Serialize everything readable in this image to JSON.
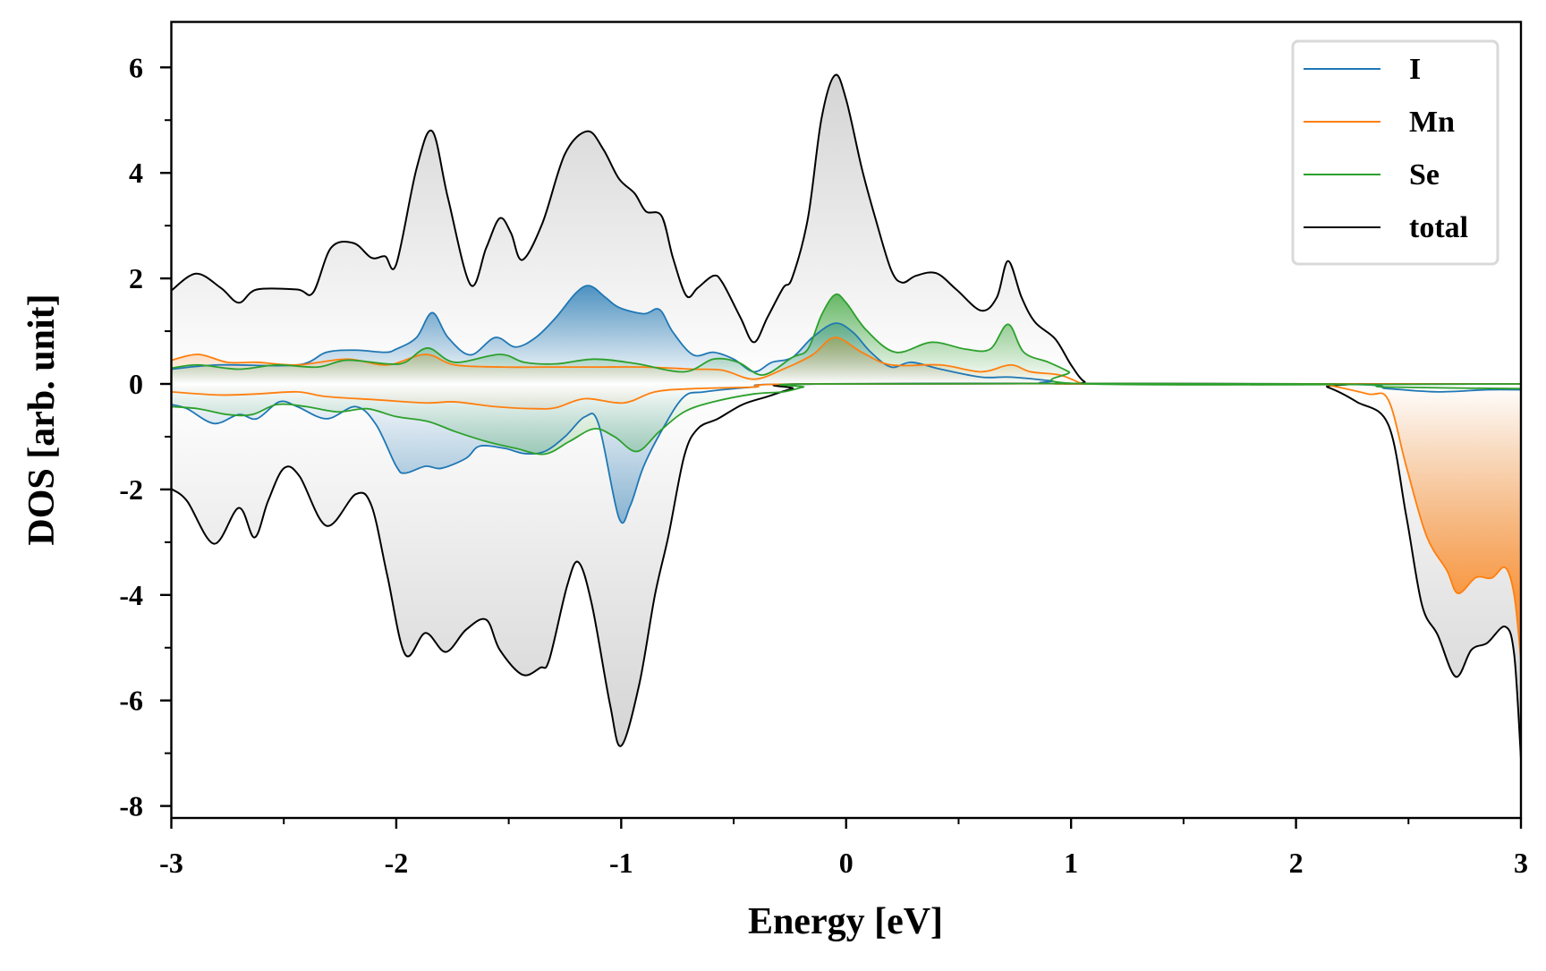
{
  "chart_data": {
    "type": "line",
    "title": "",
    "xlabel": "Energy [eV]",
    "ylabel": "DOS [arb. unit]",
    "xlim": [
      -3,
      3
    ],
    "ylim": [
      -8.2,
      6.8
    ],
    "xticks": [
      -3,
      -2,
      -1,
      0,
      1,
      2,
      3
    ],
    "xtick_labels": [
      "-3",
      "-2",
      "-1",
      "0",
      "1",
      "2",
      "3"
    ],
    "yticks": [
      6,
      4,
      2,
      0,
      -2,
      -4,
      -6,
      -8
    ],
    "ytick_labels": [
      "6",
      "4",
      "2",
      "0",
      "-2",
      "-4",
      "-6",
      "-8"
    ],
    "grid": false,
    "legend_position": "top-right",
    "series": [
      {
        "name": "I",
        "color": "#1f77b4",
        "up": [
          [
            -3,
            0.28
          ],
          [
            -2.79,
            0.36
          ],
          [
            -2.44,
            0.36
          ],
          [
            -2.31,
            0.6
          ],
          [
            -2.18,
            0.64
          ],
          [
            -2.05,
            0.6
          ],
          [
            -2.0,
            0.66
          ],
          [
            -1.91,
            0.88
          ],
          [
            -1.84,
            1.35
          ],
          [
            -1.77,
            0.88
          ],
          [
            -1.67,
            0.55
          ],
          [
            -1.56,
            0.88
          ],
          [
            -1.47,
            0.7
          ],
          [
            -1.38,
            0.88
          ],
          [
            -1.29,
            1.26
          ],
          [
            -1.2,
            1.73
          ],
          [
            -1.14,
            1.86
          ],
          [
            -1.07,
            1.64
          ],
          [
            -1.01,
            1.45
          ],
          [
            -0.9,
            1.33
          ],
          [
            -0.83,
            1.41
          ],
          [
            -0.77,
            0.98
          ],
          [
            -0.68,
            0.55
          ],
          [
            -0.59,
            0.6
          ],
          [
            -0.5,
            0.47
          ],
          [
            -0.41,
            0.23
          ],
          [
            -0.33,
            0.41
          ],
          [
            -0.24,
            0.5
          ],
          [
            -0.15,
            0.88
          ],
          [
            -0.05,
            1.15
          ],
          [
            0.03,
            0.98
          ],
          [
            0.11,
            0.6
          ],
          [
            0.2,
            0.32
          ],
          [
            0.29,
            0.41
          ],
          [
            0.42,
            0.28
          ],
          [
            0.6,
            0.13
          ],
          [
            0.73,
            0.13
          ],
          [
            0.91,
            0.06
          ],
          [
            1.04,
            0
          ],
          [
            3,
            0
          ]
        ],
        "down": [
          [
            -3,
            -0.39
          ],
          [
            -2.93,
            -0.47
          ],
          [
            -2.81,
            -0.75
          ],
          [
            -2.7,
            -0.58
          ],
          [
            -2.62,
            -0.66
          ],
          [
            -2.52,
            -0.34
          ],
          [
            -2.44,
            -0.43
          ],
          [
            -2.31,
            -0.66
          ],
          [
            -2.18,
            -0.43
          ],
          [
            -2.09,
            -0.77
          ],
          [
            -2.0,
            -1.56
          ],
          [
            -1.96,
            -1.69
          ],
          [
            -1.87,
            -1.56
          ],
          [
            -1.8,
            -1.6
          ],
          [
            -1.69,
            -1.41
          ],
          [
            -1.63,
            -1.18
          ],
          [
            -1.52,
            -1.22
          ],
          [
            -1.43,
            -1.32
          ],
          [
            -1.34,
            -1.28
          ],
          [
            -1.25,
            -1.0
          ],
          [
            -1.16,
            -0.62
          ],
          [
            -1.1,
            -0.77
          ],
          [
            -1.01,
            -2.54
          ],
          [
            -0.96,
            -2.31
          ],
          [
            -0.9,
            -1.56
          ],
          [
            -0.81,
            -0.81
          ],
          [
            -0.72,
            -0.24
          ],
          [
            -0.63,
            -0.15
          ],
          [
            -0.41,
            -0.06
          ],
          [
            -0.15,
            0
          ],
          [
            2.1,
            0
          ],
          [
            2.41,
            -0.09
          ],
          [
            2.63,
            -0.15
          ],
          [
            2.85,
            -0.11
          ],
          [
            3,
            -0.11
          ]
        ]
      },
      {
        "name": "Mn",
        "color": "#ff7f0e",
        "up": [
          [
            -3,
            0.45
          ],
          [
            -2.88,
            0.56
          ],
          [
            -2.75,
            0.41
          ],
          [
            -2.62,
            0.41
          ],
          [
            -2.44,
            0.36
          ],
          [
            -2.22,
            0.47
          ],
          [
            -2.04,
            0.36
          ],
          [
            -1.87,
            0.56
          ],
          [
            -1.74,
            0.36
          ],
          [
            -1.52,
            0.32
          ],
          [
            -1.34,
            0.32
          ],
          [
            -1.12,
            0.32
          ],
          [
            -0.9,
            0.32
          ],
          [
            -0.68,
            0.28
          ],
          [
            -0.55,
            0.26
          ],
          [
            -0.41,
            0.09
          ],
          [
            -0.28,
            0.28
          ],
          [
            -0.15,
            0.55
          ],
          [
            -0.05,
            0.88
          ],
          [
            0.07,
            0.6
          ],
          [
            0.2,
            0.36
          ],
          [
            0.42,
            0.36
          ],
          [
            0.6,
            0.23
          ],
          [
            0.73,
            0.36
          ],
          [
            0.82,
            0.23
          ],
          [
            0.95,
            0.17
          ],
          [
            1.04,
            0.02
          ],
          [
            1.08,
            0
          ],
          [
            3,
            0
          ]
        ],
        "down": [
          [
            -3,
            -0.15
          ],
          [
            -2.79,
            -0.21
          ],
          [
            -2.62,
            -0.19
          ],
          [
            -2.44,
            -0.15
          ],
          [
            -2.31,
            -0.24
          ],
          [
            -2.09,
            -0.3
          ],
          [
            -1.87,
            -0.36
          ],
          [
            -1.74,
            -0.34
          ],
          [
            -1.56,
            -0.43
          ],
          [
            -1.38,
            -0.47
          ],
          [
            -1.29,
            -0.45
          ],
          [
            -1.16,
            -0.28
          ],
          [
            -0.99,
            -0.36
          ],
          [
            -0.85,
            -0.15
          ],
          [
            -0.68,
            -0.09
          ],
          [
            -0.41,
            -0.06
          ],
          [
            -0.15,
            0
          ],
          [
            2.1,
            0
          ],
          [
            2.14,
            -0.02
          ],
          [
            2.32,
            -0.19
          ],
          [
            2.41,
            -0.3
          ],
          [
            2.49,
            -1.56
          ],
          [
            2.58,
            -2.88
          ],
          [
            2.67,
            -3.53
          ],
          [
            2.72,
            -3.97
          ],
          [
            2.8,
            -3.67
          ],
          [
            2.87,
            -3.68
          ],
          [
            2.93,
            -3.48
          ],
          [
            2.97,
            -4.0
          ],
          [
            3,
            -5.23
          ]
        ]
      },
      {
        "name": "Se",
        "color": "#2ca02c",
        "up": [
          [
            -3,
            0.3
          ],
          [
            -2.88,
            0.36
          ],
          [
            -2.7,
            0.28
          ],
          [
            -2.53,
            0.36
          ],
          [
            -2.35,
            0.32
          ],
          [
            -2.22,
            0.45
          ],
          [
            -2.04,
            0.38
          ],
          [
            -1.96,
            0.41
          ],
          [
            -1.86,
            0.68
          ],
          [
            -1.74,
            0.41
          ],
          [
            -1.54,
            0.56
          ],
          [
            -1.43,
            0.41
          ],
          [
            -1.29,
            0.38
          ],
          [
            -1.12,
            0.47
          ],
          [
            -0.94,
            0.39
          ],
          [
            -0.72,
            0.23
          ],
          [
            -0.59,
            0.47
          ],
          [
            -0.48,
            0.41
          ],
          [
            -0.37,
            0.17
          ],
          [
            -0.24,
            0.5
          ],
          [
            -0.17,
            0.66
          ],
          [
            -0.11,
            1.3
          ],
          [
            -0.05,
            1.69
          ],
          [
            0.0,
            1.54
          ],
          [
            0.09,
            1.02
          ],
          [
            0.22,
            0.6
          ],
          [
            0.38,
            0.79
          ],
          [
            0.53,
            0.66
          ],
          [
            0.64,
            0.66
          ],
          [
            0.72,
            1.13
          ],
          [
            0.79,
            0.6
          ],
          [
            0.9,
            0.41
          ],
          [
            0.99,
            0.23
          ],
          [
            1.08,
            0
          ],
          [
            3,
            0
          ]
        ],
        "down": [
          [
            -3,
            -0.43
          ],
          [
            -2.88,
            -0.47
          ],
          [
            -2.75,
            -0.58
          ],
          [
            -2.64,
            -0.58
          ],
          [
            -2.53,
            -0.39
          ],
          [
            -2.4,
            -0.43
          ],
          [
            -2.26,
            -0.53
          ],
          [
            -2.13,
            -0.47
          ],
          [
            -2.0,
            -0.62
          ],
          [
            -1.86,
            -0.71
          ],
          [
            -1.74,
            -0.9
          ],
          [
            -1.6,
            -1.09
          ],
          [
            -1.47,
            -1.22
          ],
          [
            -1.34,
            -1.33
          ],
          [
            -1.23,
            -1.09
          ],
          [
            -1.12,
            -0.85
          ],
          [
            -1.03,
            -1.0
          ],
          [
            -0.93,
            -1.28
          ],
          [
            -0.83,
            -0.9
          ],
          [
            -0.72,
            -0.53
          ],
          [
            -0.59,
            -0.34
          ],
          [
            -0.41,
            -0.19
          ],
          [
            -0.28,
            -0.15
          ],
          [
            -0.19,
            -0.06
          ],
          [
            -0.11,
            0
          ],
          [
            2.1,
            0
          ],
          [
            2.41,
            -0.06
          ],
          [
            3,
            -0.09
          ]
        ]
      },
      {
        "name": "total",
        "color": "#000000",
        "up": [
          [
            -3,
            1.77
          ],
          [
            -2.89,
            2.09
          ],
          [
            -2.78,
            1.82
          ],
          [
            -2.7,
            1.54
          ],
          [
            -2.62,
            1.79
          ],
          [
            -2.44,
            1.79
          ],
          [
            -2.37,
            1.73
          ],
          [
            -2.29,
            2.58
          ],
          [
            -2.19,
            2.67
          ],
          [
            -2.11,
            2.39
          ],
          [
            -2.05,
            2.42
          ],
          [
            -2.0,
            2.27
          ],
          [
            -1.91,
            4.08
          ],
          [
            -1.84,
            4.79
          ],
          [
            -1.77,
            3.52
          ],
          [
            -1.67,
            1.88
          ],
          [
            -1.6,
            2.58
          ],
          [
            -1.54,
            3.14
          ],
          [
            -1.49,
            2.86
          ],
          [
            -1.44,
            2.35
          ],
          [
            -1.35,
            3.05
          ],
          [
            -1.25,
            4.36
          ],
          [
            -1.15,
            4.79
          ],
          [
            -1.08,
            4.45
          ],
          [
            -1.01,
            3.89
          ],
          [
            -0.94,
            3.61
          ],
          [
            -0.89,
            3.27
          ],
          [
            -0.82,
            3.18
          ],
          [
            -0.77,
            2.39
          ],
          [
            -0.71,
            1.67
          ],
          [
            -0.66,
            1.82
          ],
          [
            -0.59,
            2.05
          ],
          [
            -0.55,
            1.92
          ],
          [
            -0.47,
            1.26
          ],
          [
            -0.41,
            0.79
          ],
          [
            -0.35,
            1.26
          ],
          [
            -0.28,
            1.82
          ],
          [
            -0.24,
            2.01
          ],
          [
            -0.17,
            3.14
          ],
          [
            -0.11,
            5.02
          ],
          [
            -0.05,
            5.85
          ],
          [
            0.0,
            5.39
          ],
          [
            0.07,
            4.08
          ],
          [
            0.13,
            3.14
          ],
          [
            0.2,
            2.16
          ],
          [
            0.25,
            1.92
          ],
          [
            0.31,
            2.05
          ],
          [
            0.4,
            2.1
          ],
          [
            0.49,
            1.79
          ],
          [
            0.6,
            1.39
          ],
          [
            0.67,
            1.64
          ],
          [
            0.72,
            2.33
          ],
          [
            0.78,
            1.64
          ],
          [
            0.84,
            1.17
          ],
          [
            0.93,
            0.85
          ],
          [
            1.0,
            0.36
          ],
          [
            1.06,
            0.04
          ],
          [
            1.13,
            0
          ],
          [
            3,
            0
          ]
        ],
        "down": [
          [
            -3,
            -1.99
          ],
          [
            -2.93,
            -2.22
          ],
          [
            -2.81,
            -3.03
          ],
          [
            -2.7,
            -2.35
          ],
          [
            -2.63,
            -2.91
          ],
          [
            -2.57,
            -2.22
          ],
          [
            -2.5,
            -1.6
          ],
          [
            -2.43,
            -1.75
          ],
          [
            -2.31,
            -2.69
          ],
          [
            -2.18,
            -2.09
          ],
          [
            -2.11,
            -2.31
          ],
          [
            -2.04,
            -3.63
          ],
          [
            -1.96,
            -5.13
          ],
          [
            -1.87,
            -4.72
          ],
          [
            -1.78,
            -5.08
          ],
          [
            -1.69,
            -4.66
          ],
          [
            -1.6,
            -4.47
          ],
          [
            -1.54,
            -5.04
          ],
          [
            -1.44,
            -5.51
          ],
          [
            -1.36,
            -5.38
          ],
          [
            -1.32,
            -5.23
          ],
          [
            -1.24,
            -3.82
          ],
          [
            -1.19,
            -3.38
          ],
          [
            -1.13,
            -4.19
          ],
          [
            -1.05,
            -6.07
          ],
          [
            -1.0,
            -6.86
          ],
          [
            -0.92,
            -5.7
          ],
          [
            -0.85,
            -4.0
          ],
          [
            -0.79,
            -2.88
          ],
          [
            -0.72,
            -1.37
          ],
          [
            -0.66,
            -0.85
          ],
          [
            -0.57,
            -0.66
          ],
          [
            -0.46,
            -0.39
          ],
          [
            -0.35,
            -0.24
          ],
          [
            -0.24,
            -0.09
          ],
          [
            -0.13,
            0
          ],
          [
            2.05,
            0
          ],
          [
            2.14,
            -0.06
          ],
          [
            2.27,
            -0.34
          ],
          [
            2.41,
            -0.77
          ],
          [
            2.49,
            -2.5
          ],
          [
            2.56,
            -4.19
          ],
          [
            2.63,
            -4.76
          ],
          [
            2.71,
            -5.55
          ],
          [
            2.78,
            -5.04
          ],
          [
            2.85,
            -4.91
          ],
          [
            2.93,
            -4.6
          ],
          [
            2.97,
            -5.13
          ],
          [
            3,
            -7.1
          ]
        ]
      }
    ]
  }
}
